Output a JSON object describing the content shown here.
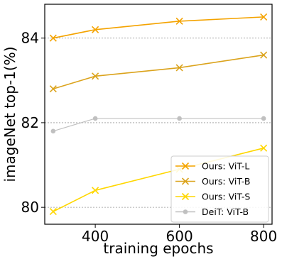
{
  "chart_data": {
    "type": "line",
    "xlabel": "training epochs",
    "ylabel": "imageNet top-1(%)",
    "xlim": [
      280,
      820
    ],
    "ylim": [
      79.6,
      84.8
    ],
    "xticks": [
      400,
      600,
      800
    ],
    "yticks": [
      80,
      82,
      84
    ],
    "x": [
      300,
      400,
      600,
      800
    ],
    "grid": "horizontal dashed",
    "legend_position": "bottom-right",
    "series": [
      {
        "name": "Ours: ViT-L",
        "values": [
          84.0,
          84.2,
          84.4,
          84.5
        ],
        "color": "#f4a300",
        "marker": "x"
      },
      {
        "name": "Ours: ViT-B",
        "values": [
          82.8,
          83.1,
          83.3,
          83.6
        ],
        "color": "#dba31c",
        "marker": "x"
      },
      {
        "name": "Ours: ViT-S",
        "values": [
          79.9,
          80.4,
          80.9,
          81.4
        ],
        "color": "#ffd700",
        "marker": "x"
      },
      {
        "name": "DeiT: ViT-B",
        "values": [
          81.8,
          82.1,
          82.1,
          82.1
        ],
        "color": "#c0c0c0",
        "marker": "o"
      }
    ]
  }
}
